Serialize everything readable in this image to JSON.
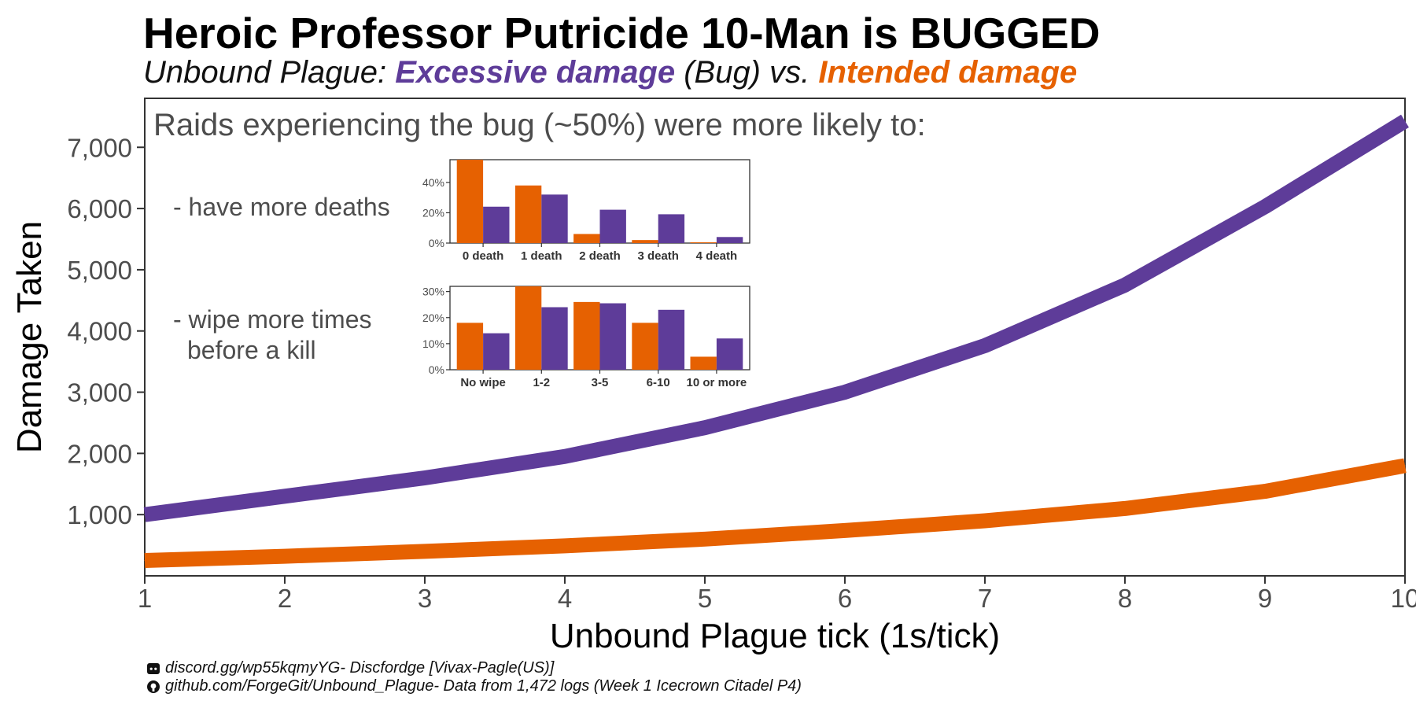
{
  "title": "Heroic Professor Putricide 10-Man is BUGGED",
  "subtitle": {
    "prefix": "Unbound Plague: ",
    "bug_label": "Excessive damage",
    "middle": " (Bug) vs. ",
    "intended_label": "Intended damage"
  },
  "colors": {
    "bug": "#5e3c99",
    "intended": "#e66101"
  },
  "chart_data": [
    {
      "type": "line",
      "xlabel": "Unbound Plague tick (1s/tick)",
      "ylabel": "Damage Taken",
      "x": [
        1,
        2,
        3,
        4,
        5,
        6,
        7,
        8,
        9,
        10
      ],
      "xlim": [
        1,
        10
      ],
      "ylim": [
        0,
        7800
      ],
      "yticks": [
        1000,
        2000,
        3000,
        4000,
        5000,
        6000,
        7000
      ],
      "ytick_labels": [
        "1,000",
        "2,000",
        "3,000",
        "4,000",
        "5,000",
        "6,000",
        "7,000"
      ],
      "xtick_labels": [
        "1",
        "2",
        "3",
        "4",
        "5",
        "6",
        "7",
        "8",
        "9",
        "10"
      ],
      "grid": false,
      "series": [
        {
          "key": "bug",
          "values": [
            1000,
            1300,
            1600,
            1950,
            2420,
            3000,
            3760,
            4750,
            6030,
            7430
          ]
        },
        {
          "key": "intended",
          "values": [
            250,
            320,
            400,
            490,
            600,
            740,
            900,
            1100,
            1380,
            1800
          ]
        }
      ],
      "annotations": {
        "headline": "Raids experiencing the bug (~50%) were more likely to:",
        "deaths_label": "- have more deaths",
        "wipes_label_line1": "- wipe more times",
        "wipes_label_line2": "before a kill"
      }
    },
    {
      "type": "bar",
      "categories": [
        "0 death",
        "1 death",
        "2 death",
        "3 death",
        "4 death"
      ],
      "ylim": [
        0,
        55
      ],
      "yticks": [
        0,
        20,
        40
      ],
      "ytick_labels": [
        "0%",
        "20%",
        "40%"
      ],
      "series": [
        {
          "key": "intended",
          "values": [
            55,
            38,
            6,
            2,
            0.5
          ]
        },
        {
          "key": "bug",
          "values": [
            24,
            32,
            22,
            19,
            4
          ]
        }
      ]
    },
    {
      "type": "bar",
      "categories": [
        "No wipe",
        "1-2",
        "3-5",
        "6-10",
        "10 or more"
      ],
      "ylim": [
        0,
        32
      ],
      "yticks": [
        0,
        10,
        20,
        30
      ],
      "ytick_labels": [
        "0%",
        "10%",
        "20%",
        "30%"
      ],
      "series": [
        {
          "key": "intended",
          "values": [
            18,
            32,
            26,
            18,
            5
          ]
        },
        {
          "key": "bug",
          "values": [
            14,
            24,
            25.5,
            23,
            12
          ]
        }
      ]
    }
  ],
  "captions": {
    "discord_icon": "discord-icon",
    "discord": "discord.gg/wp55kqmyYG- Discfordge [Vivax-Pagle(US)]",
    "github_icon": "github-icon",
    "github": "github.com/ForgeGit/Unbound_Plague- Data from 1,472 logs (Week 1 Icecrown Citadel P4)"
  }
}
